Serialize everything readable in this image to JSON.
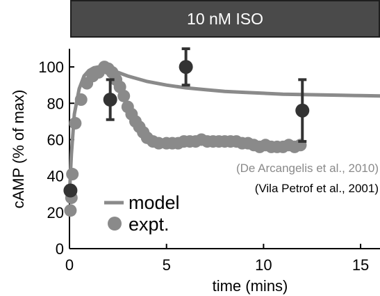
{
  "banner": {
    "label": "10 nM ISO",
    "background": "#4a4a4a"
  },
  "chart_data": {
    "type": "scatter",
    "title": "",
    "xlabel": "time (mins)",
    "ylabel": "cAMP (% of max)",
    "xlim": [
      0,
      16
    ],
    "ylim": [
      0,
      110
    ],
    "x_ticks": [
      0,
      5,
      10,
      15
    ],
    "y_ticks": [
      0,
      20,
      40,
      60,
      80,
      100
    ],
    "grid": false,
    "legend": {
      "placement": "lower-left",
      "entries": [
        {
          "label": "model",
          "marker": "line",
          "color": "#8a8a8a"
        },
        {
          "label": "expt.",
          "marker": "circle",
          "color": "#8a8a8a"
        }
      ]
    },
    "annotations": [
      {
        "text": "(De Arcangelis et al., 2010)",
        "color": "#8a8a8a"
      },
      {
        "text": "(Vila Petrof et al., 2001)",
        "color": "#000000"
      }
    ],
    "series": [
      {
        "name": "model",
        "kind": "line",
        "color": "#8a8a8a",
        "x": [
          0,
          0.1,
          0.25,
          0.5,
          0.75,
          1.0,
          1.25,
          1.5,
          1.75,
          2.0,
          2.5,
          3,
          4,
          5,
          6,
          7,
          8,
          9,
          10,
          11,
          12,
          13,
          14,
          15,
          16
        ],
        "y": [
          30,
          52,
          74,
          88,
          95,
          98,
          99.5,
          100,
          99.5,
          98.5,
          97,
          95,
          92,
          90,
          88.5,
          87.5,
          86.5,
          86,
          85.5,
          85,
          84.8,
          84.6,
          84.4,
          84.2,
          84
        ]
      },
      {
        "name": "expt.",
        "kind": "scatter",
        "color": "#8a8a8a",
        "x": [
          0.05,
          0.1,
          0.15,
          0.3,
          0.6,
          0.9,
          1.2,
          1.5,
          1.8,
          2.0,
          2.2,
          2.4,
          2.6,
          2.8,
          3.0,
          3.2,
          3.4,
          3.6,
          3.8,
          4.0,
          4.3,
          4.6,
          5.0,
          5.3,
          5.6,
          5.9,
          6.2,
          6.5,
          6.8,
          7.1,
          7.4,
          7.7,
          8.0,
          8.3,
          8.6,
          8.9,
          9.2,
          9.5,
          9.8,
          10.1,
          10.4,
          10.7,
          11.0,
          11.3,
          11.6,
          11.9
        ],
        "y": [
          21,
          28,
          41,
          69,
          82,
          91,
          95,
          97,
          100,
          99,
          97,
          93,
          89,
          84,
          78,
          74,
          70,
          67,
          64,
          61,
          59,
          58,
          58,
          58,
          58,
          59,
          59,
          59,
          60,
          59,
          59,
          59,
          59,
          59,
          59,
          58,
          58,
          57,
          56,
          57,
          56,
          56,
          56,
          57,
          56,
          57
        ]
      },
      {
        "name": "",
        "kind": "errorbar",
        "color": "#333333",
        "x": [
          0.05,
          2.1,
          6.0,
          12.0
        ],
        "y": [
          32,
          82,
          100,
          76
        ],
        "err": [
          0,
          11,
          10,
          17
        ]
      }
    ]
  }
}
